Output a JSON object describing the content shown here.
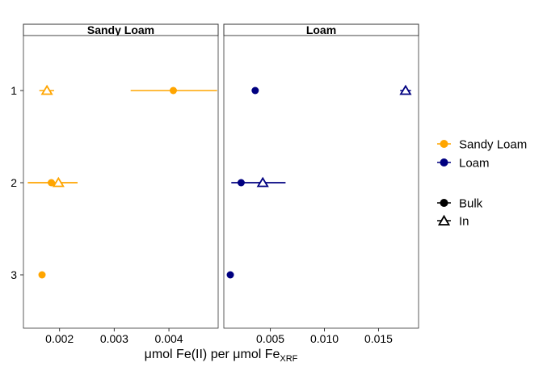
{
  "chart_data": {
    "type": "scatter",
    "subtype": "dot-errorbar-faceted",
    "y_categories": [
      "1",
      "2",
      "3"
    ],
    "x_axis_title_prefix": "μmol Fe(II) per μmol Fe",
    "x_axis_title_subscript": "XRF",
    "panels": [
      {
        "strip": "Sandy Loam",
        "color": "#FFA500",
        "xlim": [
          0.00134,
          0.0049
        ],
        "ticks": [
          {
            "value": 0.002,
            "label": "0.002"
          },
          {
            "value": 0.003,
            "label": "0.003"
          },
          {
            "value": 0.004,
            "label": "0.004"
          }
        ],
        "points": [
          {
            "category": "1",
            "type": "Bulk",
            "x": 0.00408,
            "xmin": 0.0033,
            "xmax": 0.00488
          },
          {
            "category": "1",
            "type": "In",
            "x": 0.00177,
            "xmin": 0.00163,
            "xmax": 0.0019
          },
          {
            "category": "2",
            "type": "Bulk",
            "x": 0.00185,
            "xmin": 0.00142,
            "xmax": 0.00233
          },
          {
            "category": "2",
            "type": "In",
            "x": 0.00198,
            "xmin": 0.00142,
            "xmax": 0.00233
          },
          {
            "category": "3",
            "type": "Bulk",
            "x": 0.00168,
            "xmin": null,
            "xmax": null
          }
        ]
      },
      {
        "strip": "Loam",
        "color": "#000080",
        "xlim": [
          0.0007,
          0.0187
        ],
        "ticks": [
          {
            "value": 0.005,
            "label": "0.005"
          },
          {
            "value": 0.01,
            "label": "0.010"
          },
          {
            "value": 0.015,
            "label": "0.015"
          }
        ],
        "points": [
          {
            "category": "1",
            "type": "Bulk",
            "x": 0.0036,
            "xmin": 0.0033,
            "xmax": 0.0038
          },
          {
            "category": "1",
            "type": "In",
            "x": 0.0175,
            "xmin": 0.017,
            "xmax": 0.018
          },
          {
            "category": "2",
            "type": "Bulk",
            "x": 0.0023,
            "xmin": 0.0014,
            "xmax": 0.0064
          },
          {
            "category": "2",
            "type": "In",
            "x": 0.0043,
            "xmin": 0.0014,
            "xmax": 0.0064
          },
          {
            "category": "3",
            "type": "Bulk",
            "x": 0.0013,
            "xmin": null,
            "xmax": null
          }
        ]
      }
    ],
    "legend": {
      "position": "right",
      "color_entries": [
        {
          "label": "Sandy Loam",
          "color": "#FFA500"
        },
        {
          "label": "Loam",
          "color": "#000080"
        }
      ],
      "shape_entries": [
        {
          "label": "Bulk",
          "shape": "filled-circle"
        },
        {
          "label": "In",
          "shape": "open-triangle"
        }
      ]
    },
    "grid": false
  }
}
